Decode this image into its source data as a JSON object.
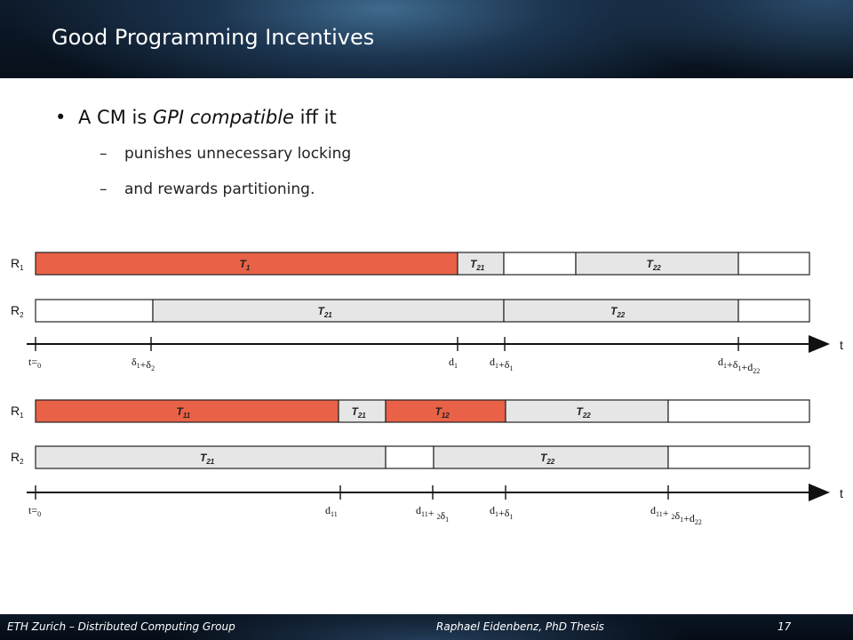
{
  "slide": {
    "title": "Good Programming Incentives",
    "bullet": {
      "prefix": "A CM is ",
      "emph": "GPI compatible",
      "suffix": " iff it"
    },
    "subbullets": [
      "punishes unnecessary locking",
      "and rewards partitioning."
    ]
  },
  "footer": {
    "left": "ETH Zurich – Distributed Computing Group",
    "center": "Raphael Eidenbenz, PhD Thesis",
    "page": "17"
  },
  "colors": {
    "locked": "#e96146",
    "waiting": "#e6e6e6",
    "bar": "#0f1f33"
  },
  "diagram": {
    "top": {
      "rows": [
        {
          "label": "R1",
          "segments": [
            {
              "task": "T1",
              "state": "locked"
            },
            {
              "task": "T21",
              "state": "waiting"
            },
            {
              "task": "",
              "state": "idle"
            },
            {
              "task": "T22",
              "state": "waiting"
            },
            {
              "task": "",
              "state": "idle"
            }
          ]
        },
        {
          "label": "R2",
          "segments": [
            {
              "task": "",
              "state": "idle"
            },
            {
              "task": "T21",
              "state": "waiting"
            },
            {
              "task": "T22",
              "state": "waiting"
            },
            {
              "task": "",
              "state": "idle"
            }
          ]
        }
      ],
      "axis_label": "t",
      "ticks": [
        "t=0",
        "δ1+δ2",
        "d1",
        "d1+δ1",
        "d1+δ1+d22"
      ]
    },
    "bottom": {
      "rows": [
        {
          "label": "R1",
          "segments": [
            {
              "task": "T11",
              "state": "locked"
            },
            {
              "task": "T21",
              "state": "waiting"
            },
            {
              "task": "T12",
              "state": "locked"
            },
            {
              "task": "T22",
              "state": "waiting"
            },
            {
              "task": "",
              "state": "idle"
            }
          ]
        },
        {
          "label": "R2",
          "segments": [
            {
              "task": "T21",
              "state": "waiting"
            },
            {
              "task": "",
              "state": "idle"
            },
            {
              "task": "T22",
              "state": "waiting"
            },
            {
              "task": "",
              "state": "idle"
            }
          ]
        }
      ],
      "axis_label": "t",
      "ticks": [
        "t=0",
        "d11",
        "d11+ 2δ1",
        "d1+δ1",
        "d11+ 2δ1+d22"
      ]
    }
  }
}
